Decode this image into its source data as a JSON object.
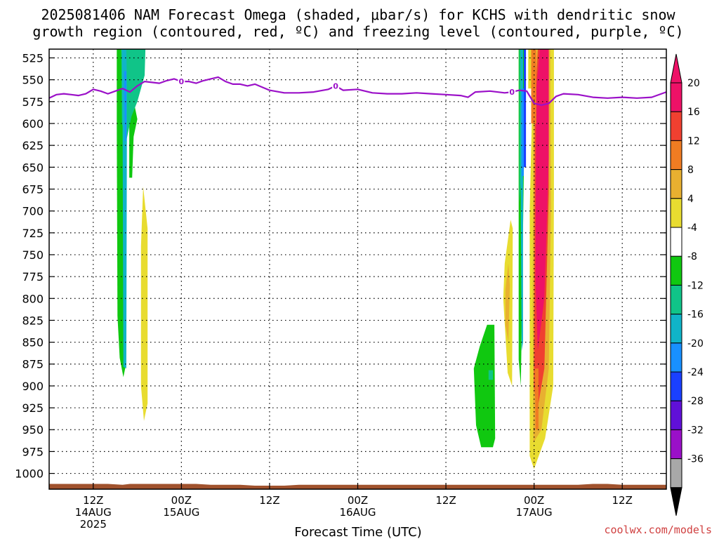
{
  "chart_data": {
    "type": "heatmap",
    "title_lines": [
      "2025081406 NAM Forecast Omega (shaded, μbar/s) for KCHS with dendritic snow",
      "growth region (contoured, red, ºC) and freezing level (contoured, purple, ºC)"
    ],
    "xlabel": "Forecast Time (UTC)",
    "ylabel": "",
    "credit": "coolwx.com/models",
    "x_hours_range": [
      6,
      90
    ],
    "y_levels": [
      525,
      550,
      575,
      600,
      625,
      650,
      675,
      700,
      725,
      750,
      775,
      800,
      825,
      850,
      875,
      900,
      925,
      950,
      975,
      1000
    ],
    "y_range": [
      515,
      1018
    ],
    "x_ticks": [
      {
        "hour": 12,
        "lines": [
          "12Z",
          "14AUG",
          "2025"
        ]
      },
      {
        "hour": 24,
        "lines": [
          "00Z",
          "15AUG"
        ]
      },
      {
        "hour": 36,
        "lines": [
          "12Z"
        ]
      },
      {
        "hour": 48,
        "lines": [
          "00Z",
          "16AUG"
        ]
      },
      {
        "hour": 60,
        "lines": [
          "12Z"
        ]
      },
      {
        "hour": 72,
        "lines": [
          "00Z",
          "17AUG"
        ]
      },
      {
        "hour": 84,
        "lines": [
          "12Z"
        ]
      }
    ],
    "colorbar": {
      "labels": [
        "20",
        "16",
        "12",
        "8",
        "4",
        "-4",
        "-8",
        "-12",
        "-16",
        "-20",
        "-24",
        "-28",
        "-32",
        "-36"
      ],
      "colors": [
        "#ee1167",
        "#f04030",
        "#f07c22",
        "#e8b030",
        "#e8dc30",
        "#ffffff",
        "#10c810",
        "#10c488",
        "#10b4c8",
        "#1890ff",
        "#1a40ff",
        "#6010d8",
        "#9a10c8",
        "#a8a8a8"
      ],
      "top_color": "#ee1167",
      "bottom_color": "#000000"
    },
    "freezing_level": {
      "label": "0",
      "label_hours": [
        24,
        45,
        69
      ],
      "x": [
        6,
        7,
        8,
        9,
        10,
        11,
        12,
        13,
        14,
        15,
        16,
        17,
        18,
        19,
        20,
        21,
        22,
        23,
        24,
        25,
        26,
        27,
        28,
        29,
        30,
        31,
        32,
        33,
        34,
        36,
        38,
        40,
        42,
        44,
        45,
        46,
        48,
        50,
        52,
        54,
        56,
        58,
        60,
        62,
        63,
        64,
        66,
        68,
        69,
        70,
        71,
        72,
        73,
        74,
        75,
        76,
        78,
        80,
        82,
        84,
        86,
        88,
        90
      ],
      "y": [
        571,
        567,
        566,
        567,
        568,
        566,
        561,
        563,
        566,
        563,
        560,
        564,
        557,
        552,
        553,
        554,
        551,
        549,
        552,
        552,
        554,
        551,
        549,
        547,
        552,
        555,
        555,
        557,
        555,
        562,
        565,
        565,
        564,
        561,
        557,
        562,
        561,
        565,
        566,
        566,
        565,
        566,
        567,
        568,
        570,
        564,
        563,
        565,
        564,
        562,
        563,
        577,
        579,
        577,
        569,
        566,
        567,
        570,
        571,
        570,
        571,
        570,
        564
      ]
    },
    "omega_regions": [
      {
        "value": -8,
        "color": "#10c810",
        "points": [
          [
            15.2,
            515
          ],
          [
            15.8,
            515
          ],
          [
            16.4,
            600
          ],
          [
            16.4,
            878
          ],
          [
            16.1,
            890
          ],
          [
            15.6,
            868
          ],
          [
            15.3,
            820
          ],
          [
            15.2,
            600
          ]
        ]
      },
      {
        "value": -8,
        "color": "#10c810",
        "points": [
          [
            16.8,
            585
          ],
          [
            17.4,
            570
          ],
          [
            18.0,
            595
          ],
          [
            17.5,
            615
          ],
          [
            17.3,
            662
          ],
          [
            16.9,
            662
          ],
          [
            16.9,
            600
          ]
        ]
      },
      {
        "value": -12,
        "color": "#10c488",
        "points": [
          [
            15.8,
            515
          ],
          [
            19.1,
            515
          ],
          [
            19.0,
            545
          ],
          [
            18.0,
            575
          ],
          [
            17.2,
            592
          ],
          [
            16.5,
            620
          ],
          [
            15.9,
            600
          ]
        ]
      },
      {
        "value": -16,
        "color": "#10b4c8",
        "points": [
          [
            15.9,
            515
          ],
          [
            16.5,
            515
          ],
          [
            16.6,
            560
          ],
          [
            16.5,
            880
          ],
          [
            16.1,
            878
          ],
          [
            16.0,
            600
          ]
        ]
      },
      {
        "value": -20,
        "color": "#1890ff",
        "points": [
          [
            16.2,
            540
          ],
          [
            16.5,
            540
          ],
          [
            16.5,
            620
          ],
          [
            16.3,
            620
          ]
        ]
      },
      {
        "value": 4,
        "color": "#e8dc30",
        "points": [
          [
            18.8,
            672
          ],
          [
            19.4,
            720
          ],
          [
            19.4,
            920
          ],
          [
            18.9,
            940
          ],
          [
            18.5,
            900
          ],
          [
            18.5,
            740
          ]
        ]
      },
      {
        "value": -8,
        "color": "#10c810",
        "points": [
          [
            65.6,
            830
          ],
          [
            66.6,
            830
          ],
          [
            66.7,
            960
          ],
          [
            66.4,
            970
          ],
          [
            64.8,
            970
          ],
          [
            64.1,
            945
          ],
          [
            63.8,
            880
          ],
          [
            64.6,
            855
          ]
        ]
      },
      {
        "value": -12,
        "color": "#10c488",
        "points": [
          [
            65.8,
            882
          ],
          [
            66.4,
            882
          ],
          [
            66.4,
            893
          ],
          [
            65.8,
            893
          ]
        ]
      },
      {
        "value": 4,
        "color": "#e8dc30",
        "points": [
          [
            68.0,
            760
          ],
          [
            68.8,
            710
          ],
          [
            69.1,
            720
          ],
          [
            69.0,
            900
          ],
          [
            68.4,
            885
          ],
          [
            67.8,
            800
          ]
        ]
      },
      {
        "value": 8,
        "color": "#e8b030",
        "points": [
          [
            68.1,
            790
          ],
          [
            68.5,
            760
          ],
          [
            68.7,
            785
          ],
          [
            68.5,
            850
          ],
          [
            68.1,
            830
          ]
        ]
      },
      {
        "value": -8,
        "color": "#10c810",
        "points": [
          [
            69.9,
            515
          ],
          [
            70.6,
            515
          ],
          [
            70.7,
            600
          ],
          [
            70.2,
            900
          ],
          [
            69.9,
            870
          ],
          [
            69.9,
            700
          ]
        ]
      },
      {
        "value": -12,
        "color": "#10c488",
        "points": [
          [
            70.0,
            515
          ],
          [
            70.5,
            515
          ],
          [
            70.5,
            640
          ],
          [
            70.0,
            690
          ]
        ]
      },
      {
        "value": -16,
        "color": "#10b4c8",
        "points": [
          [
            70.2,
            515
          ],
          [
            70.5,
            515
          ],
          [
            70.5,
            850
          ],
          [
            70.3,
            860
          ],
          [
            70.2,
            700
          ]
        ]
      },
      {
        "value": -20,
        "color": "#1890ff",
        "points": [
          [
            70.3,
            560
          ],
          [
            70.6,
            560
          ],
          [
            70.6,
            660
          ],
          [
            70.3,
            660
          ]
        ]
      },
      {
        "value": -24,
        "color": "#1a40ff",
        "points": [
          [
            70.6,
            515
          ],
          [
            70.9,
            515
          ],
          [
            70.9,
            650
          ],
          [
            70.6,
            650
          ]
        ]
      },
      {
        "value": 4,
        "color": "#e8dc30",
        "points": [
          [
            72.3,
            515
          ],
          [
            74.7,
            515
          ],
          [
            74.7,
            680
          ],
          [
            74.6,
            900
          ],
          [
            73.5,
            960
          ],
          [
            72.0,
            995
          ],
          [
            71.4,
            980
          ],
          [
            71.4,
            700
          ],
          [
            71.8,
            560
          ]
        ]
      },
      {
        "value": 8,
        "color": "#e8b030",
        "points": [
          [
            72.4,
            515
          ],
          [
            74.2,
            515
          ],
          [
            74.3,
            700
          ],
          [
            74.0,
            880
          ],
          [
            73.0,
            950
          ],
          [
            71.9,
            965
          ],
          [
            71.8,
            800
          ],
          [
            71.9,
            580
          ]
        ]
      },
      {
        "value": 16,
        "color": "#f04030",
        "points": [
          [
            72.5,
            515
          ],
          [
            73.9,
            515
          ],
          [
            74.0,
            680
          ],
          [
            73.4,
            880
          ],
          [
            72.4,
            930
          ],
          [
            72.0,
            900
          ],
          [
            72.1,
            580
          ]
        ]
      },
      {
        "value": 20,
        "color": "#ee1167",
        "points": [
          [
            72.8,
            515
          ],
          [
            74.0,
            515
          ],
          [
            74.0,
            640
          ],
          [
            73.4,
            800
          ],
          [
            72.5,
            860
          ],
          [
            72.2,
            780
          ],
          [
            72.3,
            560
          ]
        ]
      },
      {
        "value": 12,
        "color": "#f07c22",
        "points": [
          [
            72.1,
            880
          ],
          [
            72.6,
            880
          ],
          [
            72.6,
            950
          ],
          [
            72.2,
            950
          ]
        ]
      },
      {
        "value": 12,
        "color": "#f07c22",
        "points": [
          [
            71.6,
            515
          ],
          [
            72.3,
            515
          ],
          [
            72.3,
            600
          ],
          [
            71.6,
            600
          ]
        ]
      },
      {
        "value": 4,
        "color": "#e8dc30",
        "points": [
          [
            71.2,
            515
          ],
          [
            71.6,
            515
          ],
          [
            71.6,
            560
          ],
          [
            71.2,
            560
          ]
        ]
      }
    ],
    "surface_color": "#a0522d",
    "surface": {
      "x": [
        6,
        8,
        10,
        12,
        14,
        16,
        17,
        18,
        20,
        22,
        24,
        26,
        28,
        30,
        32,
        34,
        36,
        38,
        40,
        42,
        44,
        46,
        48,
        50,
        52,
        54,
        56,
        58,
        60,
        62,
        64,
        66,
        68,
        70,
        72,
        74,
        76,
        78,
        80,
        82,
        84,
        86,
        88,
        90
      ],
      "p": [
        1012,
        1012,
        1012,
        1012,
        1012,
        1013,
        1012,
        1012,
        1012,
        1012,
        1012,
        1012,
        1013,
        1013,
        1013,
        1014,
        1014,
        1014,
        1013,
        1013,
        1013,
        1013,
        1013,
        1013,
        1013,
        1013,
        1013,
        1013,
        1013,
        1013,
        1013,
        1013,
        1013,
        1013,
        1013,
        1013,
        1013,
        1013,
        1012,
        1012,
        1013,
        1013,
        1013,
        1013
      ]
    }
  }
}
